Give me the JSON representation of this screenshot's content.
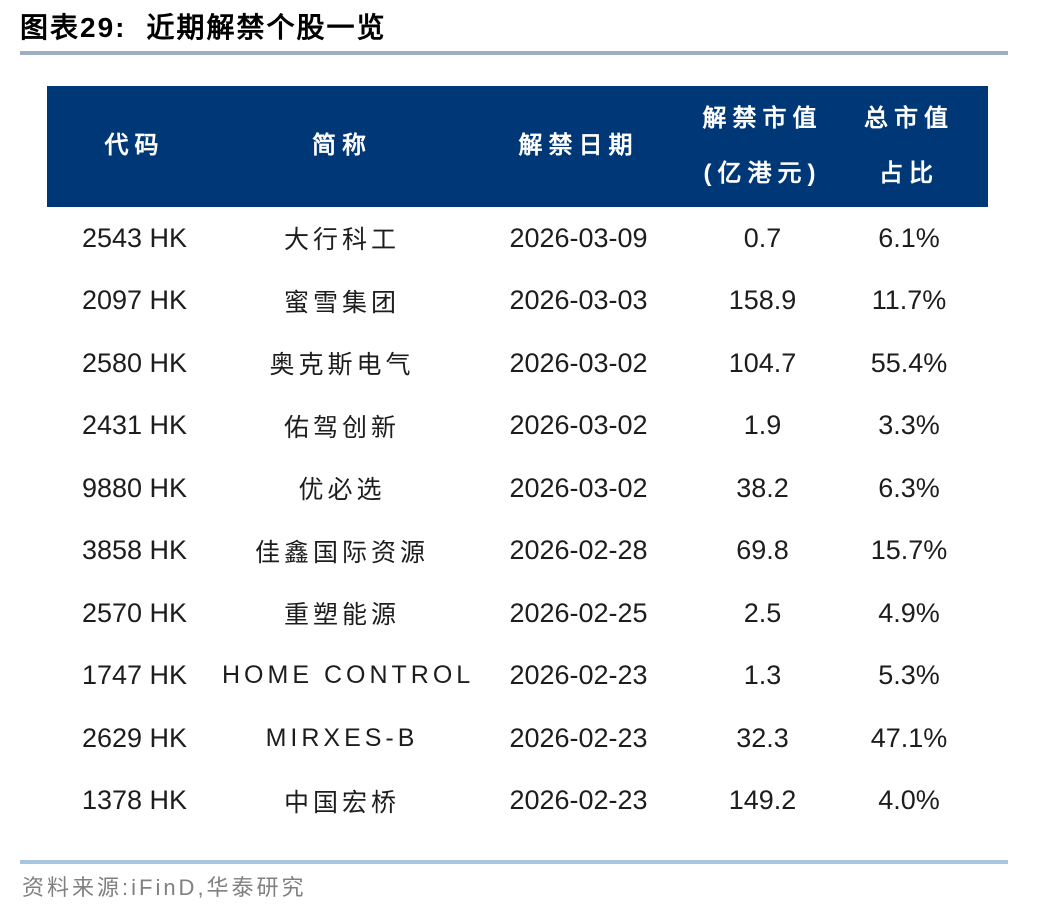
{
  "figure": {
    "label": "图表29:",
    "title": "近期解禁个股一览"
  },
  "table": {
    "columns": [
      {
        "line1": "代码"
      },
      {
        "line1": "简称"
      },
      {
        "line1": "解禁日期"
      },
      {
        "line1": "解禁市值",
        "line2": "(亿港元)"
      },
      {
        "line1": "总市值",
        "line2": "占比"
      }
    ],
    "rows": [
      {
        "code": "2543 HK",
        "name": "大行科工",
        "date": "2026-03-09",
        "value": "0.7",
        "pct": "6.1%"
      },
      {
        "code": "2097 HK",
        "name": "蜜雪集团",
        "date": "2026-03-03",
        "value": "158.9",
        "pct": "11.7%"
      },
      {
        "code": "2580 HK",
        "name": "奥克斯电气",
        "date": "2026-03-02",
        "value": "104.7",
        "pct": "55.4%"
      },
      {
        "code": "2431 HK",
        "name": "佑驾创新",
        "date": "2026-03-02",
        "value": "1.9",
        "pct": "3.3%"
      },
      {
        "code": "9880 HK",
        "name": "优必选",
        "date": "2026-03-02",
        "value": "38.2",
        "pct": "6.3%"
      },
      {
        "code": "3858 HK",
        "name": "佳鑫国际资源",
        "date": "2026-02-28",
        "value": "69.8",
        "pct": "15.7%"
      },
      {
        "code": "2570 HK",
        "name": "重塑能源",
        "date": "2026-02-25",
        "value": "2.5",
        "pct": "4.9%"
      },
      {
        "code": "1747 HK",
        "name": "HOME CONTROL",
        "date": "2026-02-23",
        "value": "1.3",
        "pct": "5.3%"
      },
      {
        "code": "2629 HK",
        "name": "MIRXES-B",
        "date": "2026-02-23",
        "value": "32.3",
        "pct": "47.1%"
      },
      {
        "code": "1378 HK",
        "name": "中国宏桥",
        "date": "2026-02-23",
        "value": "149.2",
        "pct": "4.0%"
      }
    ]
  },
  "source": {
    "text": "资料来源:iFinD,华泰研究"
  },
  "colors": {
    "header_bg": "#003877",
    "header_text": "#ffffff",
    "title_rule": "#9dafc5",
    "source_rule": "#a9c6e0",
    "source_text": "#808080",
    "body_text": "#1d1d1d"
  }
}
